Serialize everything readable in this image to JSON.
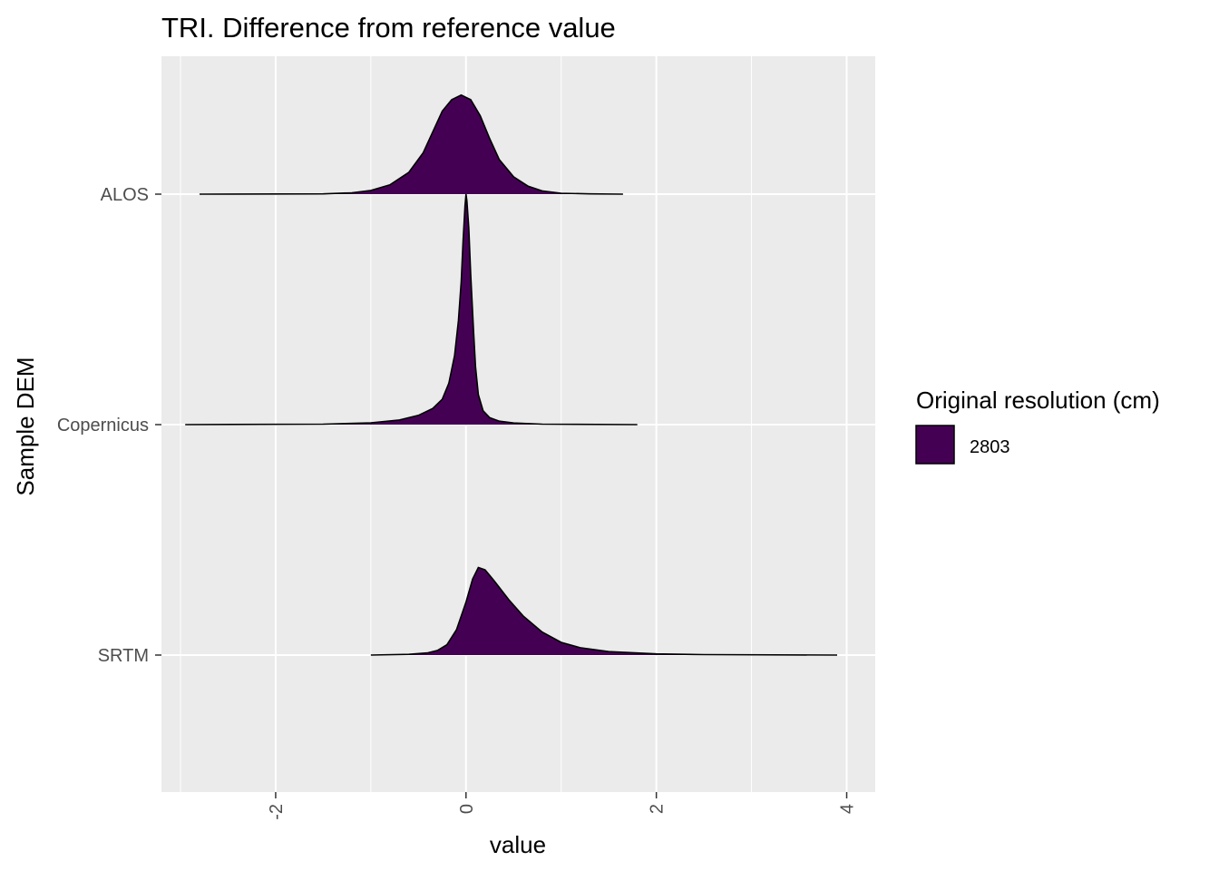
{
  "chart_data": {
    "type": "ridgeline",
    "title": "TRI. Difference from reference value",
    "xlabel": "value",
    "ylabel": "Sample DEM",
    "xlim": [
      -3.2,
      4.3
    ],
    "x_ticks": [
      -2,
      0,
      2,
      4
    ],
    "x_tick_labels": [
      "-2",
      "0",
      "2",
      "4"
    ],
    "categories": [
      "ALOS",
      "Copernicus",
      "SRTM"
    ],
    "grid": true,
    "background": "#ebebeb",
    "fill_color": "#440154",
    "legend": {
      "title": "Original resolution (cm)",
      "position": "right",
      "entries": [
        {
          "label": "2803",
          "color": "#440154"
        }
      ]
    },
    "series": [
      {
        "name": "ALOS",
        "range": [
          -2.8,
          1.65
        ],
        "peak_height": 0.43,
        "points": [
          [
            -2.8,
            0
          ],
          [
            -1.5,
            0.001
          ],
          [
            -1.2,
            0.006
          ],
          [
            -1.0,
            0.016
          ],
          [
            -0.8,
            0.04
          ],
          [
            -0.6,
            0.095
          ],
          [
            -0.45,
            0.18
          ],
          [
            -0.35,
            0.27
          ],
          [
            -0.25,
            0.36
          ],
          [
            -0.15,
            0.41
          ],
          [
            -0.05,
            0.43
          ],
          [
            0.05,
            0.41
          ],
          [
            0.15,
            0.34
          ],
          [
            0.25,
            0.24
          ],
          [
            0.35,
            0.15
          ],
          [
            0.5,
            0.075
          ],
          [
            0.65,
            0.035
          ],
          [
            0.8,
            0.014
          ],
          [
            1.0,
            0.004
          ],
          [
            1.3,
            0.001
          ],
          [
            1.65,
            0
          ]
        ]
      },
      {
        "name": "Copernicus",
        "range": [
          -2.95,
          1.8
        ],
        "peak_height": 1.0,
        "points": [
          [
            -2.95,
            0
          ],
          [
            -1.5,
            0.002
          ],
          [
            -1.0,
            0.008
          ],
          [
            -0.7,
            0.02
          ],
          [
            -0.5,
            0.04
          ],
          [
            -0.35,
            0.07
          ],
          [
            -0.25,
            0.11
          ],
          [
            -0.18,
            0.18
          ],
          [
            -0.12,
            0.3
          ],
          [
            -0.08,
            0.45
          ],
          [
            -0.05,
            0.62
          ],
          [
            -0.03,
            0.8
          ],
          [
            -0.01,
            0.95
          ],
          [
            0.0,
            1.0
          ],
          [
            0.01,
            0.97
          ],
          [
            0.03,
            0.85
          ],
          [
            0.05,
            0.65
          ],
          [
            0.08,
            0.4
          ],
          [
            0.1,
            0.25
          ],
          [
            0.13,
            0.13
          ],
          [
            0.18,
            0.06
          ],
          [
            0.25,
            0.03
          ],
          [
            0.35,
            0.015
          ],
          [
            0.5,
            0.007
          ],
          [
            0.8,
            0.002
          ],
          [
            1.8,
            0
          ]
        ]
      },
      {
        "name": "SRTM",
        "range": [
          -1.0,
          3.9
        ],
        "peak_height": 0.38,
        "points": [
          [
            -1.0,
            0
          ],
          [
            -0.6,
            0.003
          ],
          [
            -0.4,
            0.01
          ],
          [
            -0.3,
            0.02
          ],
          [
            -0.2,
            0.045
          ],
          [
            -0.1,
            0.11
          ],
          [
            0.0,
            0.23
          ],
          [
            0.07,
            0.33
          ],
          [
            0.13,
            0.38
          ],
          [
            0.2,
            0.37
          ],
          [
            0.3,
            0.32
          ],
          [
            0.45,
            0.24
          ],
          [
            0.6,
            0.17
          ],
          [
            0.8,
            0.1
          ],
          [
            1.0,
            0.055
          ],
          [
            1.2,
            0.032
          ],
          [
            1.5,
            0.015
          ],
          [
            2.0,
            0.005
          ],
          [
            2.5,
            0.002
          ],
          [
            3.9,
            0
          ]
        ]
      }
    ]
  }
}
